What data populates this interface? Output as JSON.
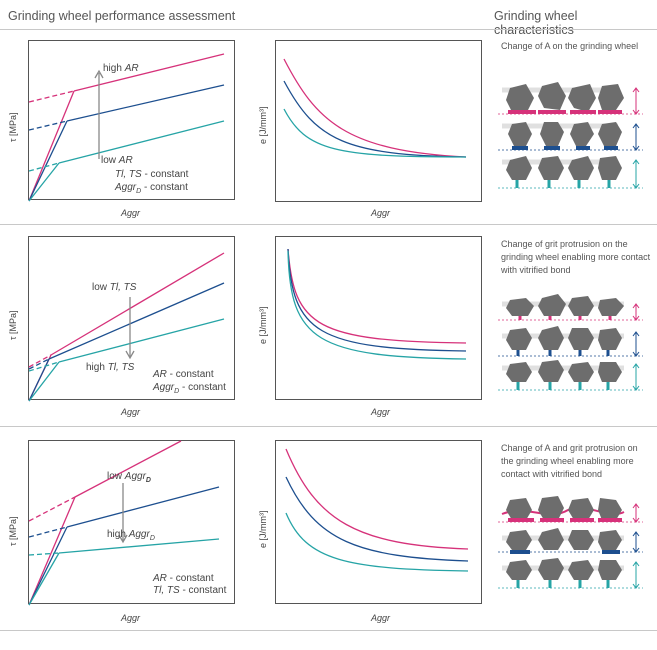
{
  "header": {
    "left_title": "Grinding wheel performance assessment",
    "right_title": "Grinding wheel characteristics"
  },
  "colors": {
    "magenta": "#d6327a",
    "navy": "#1d4f8f",
    "teal": "#26a4a6",
    "axis": "#555555",
    "grit": "#6d6d6d"
  },
  "axis_labels": {
    "tau": "τ [MPa]",
    "e": "e [J/mm³]",
    "aggr": "Aggr"
  },
  "rows": [
    {
      "tau_chart": {
        "annotation_top": {
          "prefix": "high ",
          "var": "AR"
        },
        "annotation_bottom": {
          "prefix": "low ",
          "var": "AR"
        },
        "note_line1": {
          "var": "Tl, TS",
          "suffix": " - constant"
        },
        "note_line2": {
          "var": "Aggr",
          "sub": "D",
          "suffix": " - constant"
        }
      },
      "description": "Change of A on the grinding wheel"
    },
    {
      "tau_chart": {
        "annotation_top": {
          "prefix": "low ",
          "var": "Tl, TS"
        },
        "annotation_bottom": {
          "prefix": "high ",
          "var": "Tl, TS"
        },
        "note_line1": {
          "var": "AR",
          "suffix": " - constant"
        },
        "note_line2": {
          "var": "Aggr",
          "sub": "D",
          "suffix": " - constant"
        }
      },
      "description": "Change of grit protrusion on the grinding wheel enabling more contact with vitrified bond"
    },
    {
      "tau_chart": {
        "annotation_top": {
          "prefix": "low ",
          "var": "Aggr",
          "sub": "D"
        },
        "annotation_bottom": {
          "prefix": "high ",
          "var": "Aggr",
          "sub": "D"
        },
        "note_line1": {
          "var": "AR",
          "suffix": " - constant"
        },
        "note_line2": {
          "var": "Tl, TS",
          "suffix": " - constant"
        }
      },
      "description": "Change of A and grit protrusion on the grinding wheel enabling more contact with vitrified bond"
    }
  ]
}
